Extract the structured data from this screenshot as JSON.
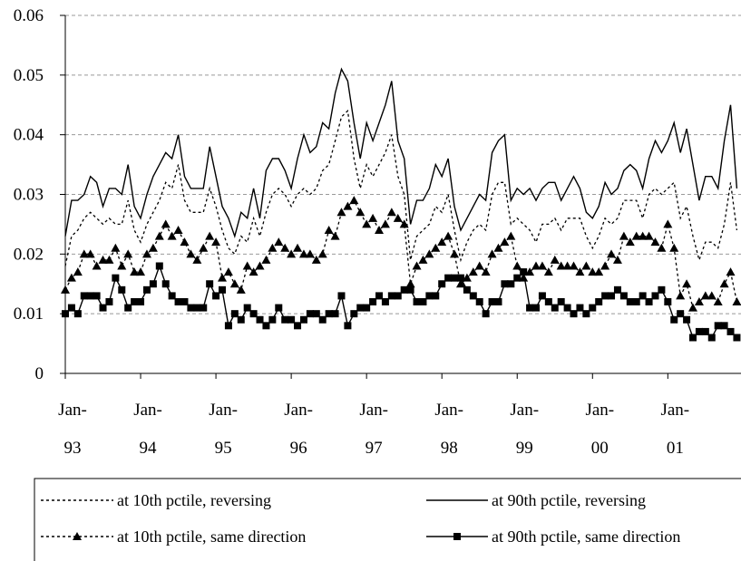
{
  "chart_data": {
    "type": "line",
    "categories": [
      "Jan-93",
      null,
      null,
      null,
      null,
      null,
      null,
      null,
      null,
      null,
      null,
      null,
      "Jan-94",
      null,
      null,
      null,
      null,
      null,
      null,
      null,
      null,
      null,
      null,
      null,
      "Jan-95",
      null,
      null,
      null,
      null,
      null,
      null,
      null,
      null,
      null,
      null,
      null,
      "Jan-96",
      null,
      null,
      null,
      null,
      null,
      null,
      null,
      null,
      null,
      null,
      null,
      "Jan-97",
      null,
      null,
      null,
      null,
      null,
      null,
      null,
      null,
      null,
      null,
      null,
      "Jan-98",
      null,
      null,
      null,
      null,
      null,
      null,
      null,
      null,
      null,
      null,
      null,
      "Jan-99",
      null,
      null,
      null,
      null,
      null,
      null,
      null,
      null,
      null,
      null,
      null,
      "Jan-00",
      null,
      null,
      null,
      null,
      null,
      null,
      null,
      null,
      null,
      null,
      null,
      "Jan-01",
      null,
      null,
      null,
      null,
      null,
      null,
      null,
      null,
      null,
      null,
      null
    ],
    "ylim": [
      0,
      0.06
    ],
    "yticks": [
      0,
      0.01,
      0.02,
      0.03,
      0.04,
      0.05,
      0.06
    ],
    "grid": true,
    "series": [
      {
        "name": "at 10th pctile, reversing",
        "color": "#000000",
        "style": "dotted",
        "marker": "none",
        "values": [
          0.018,
          0.023,
          0.024,
          0.026,
          0.027,
          0.026,
          0.025,
          0.026,
          0.025,
          0.025,
          0.029,
          0.024,
          0.022,
          0.025,
          0.027,
          0.029,
          0.032,
          0.031,
          0.035,
          0.029,
          0.027,
          0.027,
          0.027,
          0.031,
          0.028,
          0.024,
          0.021,
          0.02,
          0.023,
          0.022,
          0.026,
          0.023,
          0.027,
          0.03,
          0.031,
          0.03,
          0.028,
          0.03,
          0.031,
          0.03,
          0.031,
          0.034,
          0.035,
          0.039,
          0.043,
          0.044,
          0.036,
          0.031,
          0.035,
          0.033,
          0.035,
          0.037,
          0.04,
          0.033,
          0.03,
          0.019,
          0.023,
          0.024,
          0.025,
          0.028,
          0.027,
          0.03,
          0.024,
          0.019,
          0.022,
          0.024,
          0.025,
          0.024,
          0.03,
          0.032,
          0.032,
          0.025,
          0.026,
          0.025,
          0.024,
          0.022,
          0.025,
          0.025,
          0.026,
          0.024,
          0.026,
          0.026,
          0.026,
          0.023,
          0.021,
          0.023,
          0.026,
          0.025,
          0.026,
          0.029,
          0.029,
          0.029,
          0.026,
          0.03,
          0.031,
          0.03,
          0.031,
          0.032,
          0.026,
          0.028,
          0.023,
          0.019,
          0.022,
          0.022,
          0.021,
          0.025,
          0.032,
          0.024
        ]
      },
      {
        "name": "at 90th pctile, reversing",
        "color": "#000000",
        "style": "solid",
        "marker": "none",
        "values": [
          0.023,
          0.029,
          0.029,
          0.03,
          0.033,
          0.032,
          0.028,
          0.031,
          0.031,
          0.03,
          0.035,
          0.028,
          0.026,
          0.03,
          0.033,
          0.035,
          0.037,
          0.036,
          0.04,
          0.033,
          0.031,
          0.031,
          0.031,
          0.038,
          0.033,
          0.028,
          0.026,
          0.023,
          0.027,
          0.026,
          0.031,
          0.026,
          0.034,
          0.036,
          0.036,
          0.034,
          0.031,
          0.036,
          0.04,
          0.037,
          0.038,
          0.042,
          0.041,
          0.047,
          0.051,
          0.049,
          0.042,
          0.036,
          0.042,
          0.039,
          0.042,
          0.045,
          0.049,
          0.039,
          0.036,
          0.025,
          0.029,
          0.029,
          0.031,
          0.035,
          0.033,
          0.036,
          0.028,
          0.024,
          0.026,
          0.028,
          0.03,
          0.029,
          0.037,
          0.039,
          0.04,
          0.029,
          0.031,
          0.03,
          0.031,
          0.029,
          0.031,
          0.032,
          0.032,
          0.029,
          0.031,
          0.033,
          0.031,
          0.027,
          0.026,
          0.028,
          0.032,
          0.03,
          0.031,
          0.034,
          0.035,
          0.034,
          0.031,
          0.036,
          0.039,
          0.037,
          0.039,
          0.042,
          0.037,
          0.041,
          0.035,
          0.029,
          0.033,
          0.033,
          0.031,
          0.039,
          0.045,
          0.031
        ]
      },
      {
        "name": "at 10th pctile, same direction",
        "color": "#000000",
        "style": "dotted",
        "marker": "triangle",
        "values": [
          0.014,
          0.016,
          0.017,
          0.02,
          0.02,
          0.018,
          0.019,
          0.019,
          0.021,
          0.018,
          0.02,
          0.017,
          0.017,
          0.02,
          0.021,
          0.023,
          0.025,
          0.023,
          0.024,
          0.022,
          0.02,
          0.019,
          0.021,
          0.023,
          0.022,
          0.016,
          0.017,
          0.015,
          0.014,
          0.018,
          0.017,
          0.018,
          0.019,
          0.021,
          0.022,
          0.021,
          0.02,
          0.021,
          0.02,
          0.02,
          0.019,
          0.02,
          0.024,
          0.023,
          0.027,
          0.028,
          0.029,
          0.027,
          0.025,
          0.026,
          0.024,
          0.025,
          0.027,
          0.026,
          0.025,
          0.015,
          0.018,
          0.019,
          0.02,
          0.021,
          0.022,
          0.023,
          0.02,
          0.015,
          0.016,
          0.017,
          0.018,
          0.017,
          0.02,
          0.021,
          0.022,
          0.023,
          0.018,
          0.016,
          0.017,
          0.018,
          0.018,
          0.017,
          0.019,
          0.018,
          0.018,
          0.018,
          0.017,
          0.018,
          0.017,
          0.017,
          0.018,
          0.02,
          0.019,
          0.023,
          0.022,
          0.023,
          0.023,
          0.023,
          0.022,
          0.021,
          0.025,
          0.021,
          0.013,
          0.015,
          0.011,
          0.012,
          0.013,
          0.013,
          0.012,
          0.015,
          0.017,
          0.012
        ]
      },
      {
        "name": "at 90th pctile, same direction",
        "color": "#000000",
        "style": "solid",
        "marker": "square",
        "values": [
          0.01,
          0.011,
          0.01,
          0.013,
          0.013,
          0.013,
          0.011,
          0.012,
          0.016,
          0.014,
          0.011,
          0.012,
          0.012,
          0.014,
          0.015,
          0.018,
          0.015,
          0.013,
          0.012,
          0.012,
          0.011,
          0.011,
          0.011,
          0.015,
          0.013,
          0.014,
          0.008,
          0.01,
          0.009,
          0.011,
          0.01,
          0.009,
          0.008,
          0.009,
          0.011,
          0.009,
          0.009,
          0.008,
          0.009,
          0.01,
          0.01,
          0.009,
          0.01,
          0.01,
          0.013,
          0.008,
          0.01,
          0.011,
          0.011,
          0.012,
          0.013,
          0.012,
          0.013,
          0.013,
          0.014,
          0.014,
          0.012,
          0.012,
          0.013,
          0.013,
          0.015,
          0.016,
          0.016,
          0.016,
          0.014,
          0.013,
          0.012,
          0.01,
          0.012,
          0.012,
          0.015,
          0.015,
          0.016,
          0.017,
          0.011,
          0.011,
          0.013,
          0.012,
          0.011,
          0.012,
          0.011,
          0.01,
          0.011,
          0.01,
          0.011,
          0.012,
          0.013,
          0.013,
          0.014,
          0.013,
          0.012,
          0.012,
          0.013,
          0.012,
          0.013,
          0.014,
          0.012,
          0.009,
          0.01,
          0.009,
          0.006,
          0.007,
          0.007,
          0.006,
          0.008,
          0.008,
          0.007,
          0.006
        ]
      }
    ]
  }
}
